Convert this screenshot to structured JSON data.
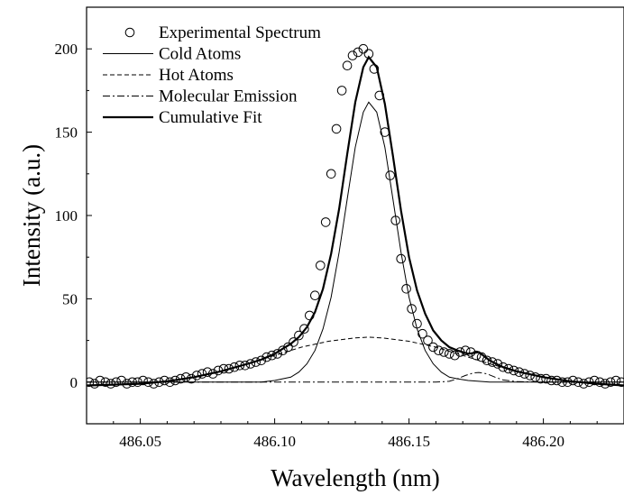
{
  "chart_data": {
    "type": "line",
    "xlabel": "Wavelength (nm)",
    "ylabel": "Intensity (a.u.)",
    "xlim": [
      486.03,
      486.23
    ],
    "ylim": [
      -25,
      225
    ],
    "xticks": [
      486.05,
      486.1,
      486.15,
      486.2
    ],
    "xtick_labels": [
      "486.05",
      "486.10",
      "486.15",
      "486.20"
    ],
    "yticks": [
      0,
      50,
      100,
      150,
      200
    ],
    "ytick_labels": [
      "0",
      "50",
      "100",
      "150",
      "200"
    ],
    "grid": false,
    "legend_position": "top-left",
    "series": [
      {
        "name": "Experimental Spectrum",
        "style": "open-circle-markers",
        "color": "#000000",
        "x": [
          486.031,
          486.033,
          486.035,
          486.037,
          486.039,
          486.041,
          486.043,
          486.045,
          486.047,
          486.049,
          486.051,
          486.053,
          486.055,
          486.057,
          486.059,
          486.061,
          486.063,
          486.065,
          486.067,
          486.069,
          486.071,
          486.073,
          486.075,
          486.077,
          486.079,
          486.081,
          486.083,
          486.085,
          486.087,
          486.089,
          486.091,
          486.093,
          486.095,
          486.097,
          486.099,
          486.101,
          486.103,
          486.105,
          486.107,
          486.109,
          486.111,
          486.113,
          486.115,
          486.117,
          486.119,
          486.121,
          486.123,
          486.125,
          486.127,
          486.129,
          486.131,
          486.133,
          486.135,
          486.137,
          486.139,
          486.141,
          486.143,
          486.145,
          486.147,
          486.149,
          486.151,
          486.153,
          486.155,
          486.157,
          486.159,
          486.161,
          486.163,
          486.165,
          486.167,
          486.169,
          486.171,
          486.173,
          486.175,
          486.177,
          486.179,
          486.181,
          486.183,
          486.185,
          486.187,
          486.189,
          486.191,
          486.193,
          486.195,
          486.197,
          486.199,
          486.201,
          486.203,
          486.205,
          486.207,
          486.209,
          486.211,
          486.213,
          486.215,
          486.217,
          486.219,
          486.221,
          486.223,
          486.225,
          486.227,
          486.229
        ],
        "y": [
          0,
          -1,
          1,
          0,
          -1,
          0,
          1,
          -1,
          0,
          0,
          1,
          0,
          -1,
          0,
          1,
          0,
          1,
          2,
          3,
          2,
          4,
          5,
          6,
          5,
          7,
          8,
          8,
          9,
          10,
          10,
          11,
          12,
          13,
          15,
          16,
          17,
          19,
          21,
          24,
          28,
          32,
          40,
          52,
          70,
          96,
          125,
          152,
          175,
          190,
          196,
          198,
          200,
          197,
          188,
          172,
          150,
          124,
          97,
          74,
          56,
          44,
          35,
          29,
          25,
          21,
          19,
          18,
          17,
          16,
          18,
          19,
          18,
          16,
          15,
          13,
          12,
          11,
          9,
          8,
          7,
          6,
          5,
          4,
          3,
          2,
          2,
          1,
          1,
          0,
          0,
          1,
          0,
          -1,
          0,
          1,
          0,
          -1,
          0,
          1,
          0
        ]
      },
      {
        "name": "Cold Atoms",
        "style": "thin-solid",
        "color": "#000000",
        "x": [
          486.03,
          486.04,
          486.05,
          486.06,
          486.07,
          486.08,
          486.09,
          486.095,
          486.1,
          486.103,
          486.106,
          486.109,
          486.112,
          486.115,
          486.118,
          486.121,
          486.124,
          486.127,
          486.13,
          486.133,
          486.135,
          486.138,
          486.141,
          486.144,
          486.147,
          486.15,
          486.153,
          486.156,
          486.159,
          486.162,
          486.165,
          486.168,
          486.172,
          486.18,
          486.19,
          486.2,
          486.21,
          486.22,
          486.23
        ],
        "y": [
          0,
          0,
          0,
          0,
          0,
          0,
          0,
          0,
          1,
          2,
          3,
          6,
          11,
          19,
          32,
          51,
          78,
          110,
          141,
          162,
          168,
          162,
          141,
          110,
          78,
          51,
          32,
          19,
          11,
          6,
          3,
          2,
          1,
          0,
          0,
          0,
          0,
          0,
          0
        ]
      },
      {
        "name": "Hot Atoms",
        "style": "dashed",
        "color": "#000000",
        "x": [
          486.03,
          486.04,
          486.05,
          486.06,
          486.07,
          486.08,
          486.09,
          486.1,
          486.11,
          486.12,
          486.13,
          486.135,
          486.14,
          486.15,
          486.16,
          486.17,
          486.18,
          486.19,
          486.2,
          486.21,
          486.22,
          486.23
        ],
        "y": [
          -2,
          -1.5,
          -1,
          0.5,
          3,
          6.5,
          11,
          16,
          21,
          24.5,
          26.5,
          27,
          26.5,
          24.5,
          21,
          16,
          11,
          6.5,
          3,
          0.5,
          -1,
          -2
        ]
      },
      {
        "name": "Molecular Emission",
        "style": "dash-dot",
        "color": "#000000",
        "x": [
          486.03,
          486.06,
          486.1,
          486.14,
          486.16,
          486.165,
          486.168,
          486.171,
          486.174,
          486.176,
          486.179,
          486.182,
          486.185,
          486.19,
          486.2,
          486.23
        ],
        "y": [
          0,
          0,
          0,
          0,
          0,
          0.5,
          2,
          4,
          5.5,
          5.8,
          5,
          3,
          1.3,
          0.3,
          0,
          0
        ]
      },
      {
        "name": "Cumulative Fit",
        "style": "thick-solid",
        "color": "#000000",
        "x": [
          486.03,
          486.04,
          486.05,
          486.06,
          486.07,
          486.08,
          486.09,
          486.095,
          486.1,
          486.103,
          486.106,
          486.109,
          486.112,
          486.115,
          486.118,
          486.121,
          486.124,
          486.127,
          486.13,
          486.133,
          486.135,
          486.138,
          486.141,
          486.144,
          486.147,
          486.15,
          486.153,
          486.156,
          486.159,
          486.162,
          486.165,
          486.168,
          486.172,
          486.176,
          486.18,
          486.185,
          486.19,
          486.2,
          486.21,
          486.22,
          486.23
        ],
        "y": [
          -2,
          -1.5,
          -1,
          0.5,
          3,
          6.5,
          11,
          13.5,
          17,
          20,
          23,
          27,
          33,
          42,
          56,
          77,
          104,
          137,
          168,
          189,
          195,
          189,
          167,
          136,
          103,
          75,
          55,
          41,
          31,
          25,
          21,
          19,
          17,
          18,
          13,
          9,
          6.5,
          3,
          0.5,
          -1,
          -2
        ]
      }
    ]
  }
}
